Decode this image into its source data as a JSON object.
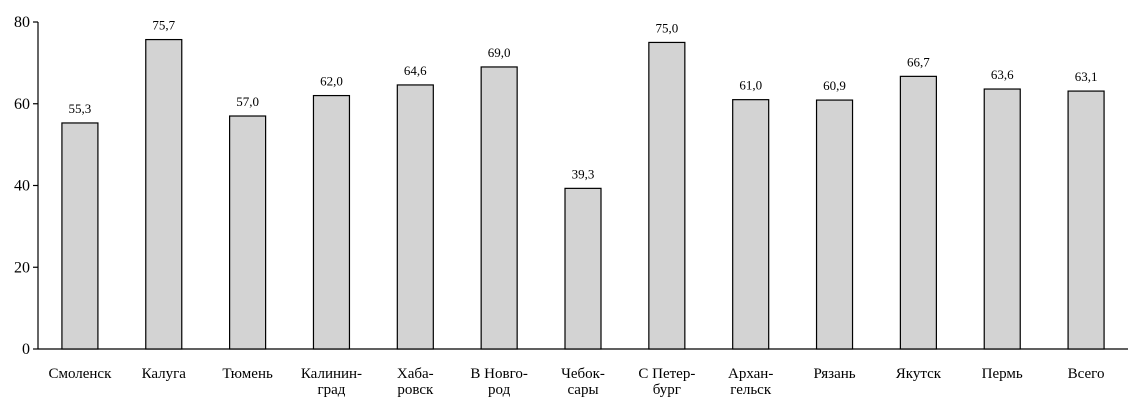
{
  "chart_data": {
    "type": "bar",
    "categories": [
      [
        "Смоленск"
      ],
      [
        "Калуга"
      ],
      [
        "Тюмень"
      ],
      [
        "Калинин-",
        "град"
      ],
      [
        "Хаба-",
        "ровск"
      ],
      [
        "В Новго-",
        "род"
      ],
      [
        "Чебок-",
        "сары"
      ],
      [
        "С Петер-",
        "бург"
      ],
      [
        "Архан-",
        "гельск"
      ],
      [
        "Рязань"
      ],
      [
        "Якутск"
      ],
      [
        "Пермь"
      ],
      [
        "Всего"
      ]
    ],
    "values": [
      55.3,
      75.7,
      57.0,
      62.0,
      64.6,
      69.0,
      39.3,
      75.0,
      61.0,
      60.9,
      66.7,
      63.6,
      63.1
    ],
    "value_labels": [
      "55,3",
      "75,7",
      "57,0",
      "62,0",
      "64,6",
      "69,0",
      "39,3",
      "75,0",
      "61,0",
      "60,9",
      "66,7",
      "63,6",
      "63,1"
    ],
    "y_ticks": [
      0,
      20,
      40,
      60,
      80
    ],
    "ylim": [
      0,
      80
    ],
    "title": "",
    "xlabel": "",
    "ylabel": "",
    "grid": false,
    "legend": "none",
    "bar_color": "#d3d3d3",
    "bar_stroke": "#000000"
  }
}
